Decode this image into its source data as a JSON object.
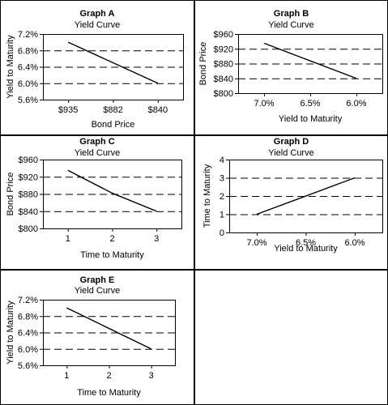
{
  "chart_data": [
    {
      "type": "line",
      "title": "Graph A",
      "subtitle": "Yield Curve",
      "xlabel": "Bond Price",
      "ylabel": "Yield to Maturity",
      "x_kind": "category",
      "categories": [
        "$935",
        "$882",
        "$840"
      ],
      "yticks": [
        "7.2%",
        "6.8%",
        "6.4%",
        "6.0%",
        "5.6%"
      ],
      "ylim": [
        5.6,
        7.2
      ],
      "series": [
        {
          "x": [
            "$935",
            "$840"
          ],
          "y": [
            7.0,
            6.0
          ]
        }
      ],
      "grid": "horizontal dashed"
    },
    {
      "type": "line",
      "title": "Graph B",
      "subtitle": "Yield Curve",
      "xlabel": "Yield to Maturity",
      "ylabel": "Bond Price",
      "x_kind": "category",
      "categories": [
        "7.0%",
        "6.5%",
        "6.0%"
      ],
      "yticks": [
        "$960",
        "$920",
        "$880",
        "$840",
        "$800"
      ],
      "ylim": [
        800,
        960
      ],
      "series": [
        {
          "x": [
            "7.0%",
            "6.0%"
          ],
          "y": [
            935,
            840
          ]
        }
      ],
      "grid": "horizontal dashed"
    },
    {
      "type": "line",
      "title": "Graph C",
      "subtitle": "Yield Curve",
      "xlabel": "Time to Maturity",
      "ylabel": "Bond Price",
      "x_kind": "category",
      "categories": [
        "1",
        "2",
        "3"
      ],
      "yticks": [
        "$960",
        "$920",
        "$880",
        "$840",
        "$800"
      ],
      "ylim": [
        800,
        960
      ],
      "series": [
        {
          "x": [
            "1",
            "2",
            "3"
          ],
          "y": [
            935,
            882,
            840
          ]
        }
      ],
      "grid": "horizontal dashed"
    },
    {
      "type": "line",
      "title": "Graph D",
      "subtitle": "Yield Curve",
      "xlabel": "Yield to Maturity",
      "ylabel": "Time to Maturity",
      "x_kind": "category",
      "categories": [
        "7.0%",
        "6.5%",
        "6.0%"
      ],
      "yticks": [
        "4",
        "3",
        "2",
        "1",
        "0"
      ],
      "ylim": [
        0,
        4
      ],
      "series": [
        {
          "x": [
            "7.0%",
            "6.0%"
          ],
          "y": [
            1,
            3
          ]
        }
      ],
      "grid": "horizontal dashed"
    },
    {
      "type": "line",
      "title": "Graph E",
      "subtitle": "Yield Curve",
      "xlabel": "Time to Maturity",
      "ylabel": "Yield to Maturity",
      "x_kind": "category",
      "categories": [
        "1",
        "2",
        "3"
      ],
      "yticks": [
        "7.2%",
        "6.8%",
        "6.4%",
        "6.0%",
        "5.6%"
      ],
      "ylim": [
        5.6,
        7.2
      ],
      "series": [
        {
          "x": [
            "1",
            "3"
          ],
          "y": [
            7.0,
            6.0
          ]
        }
      ],
      "grid": "horizontal dashed"
    }
  ]
}
